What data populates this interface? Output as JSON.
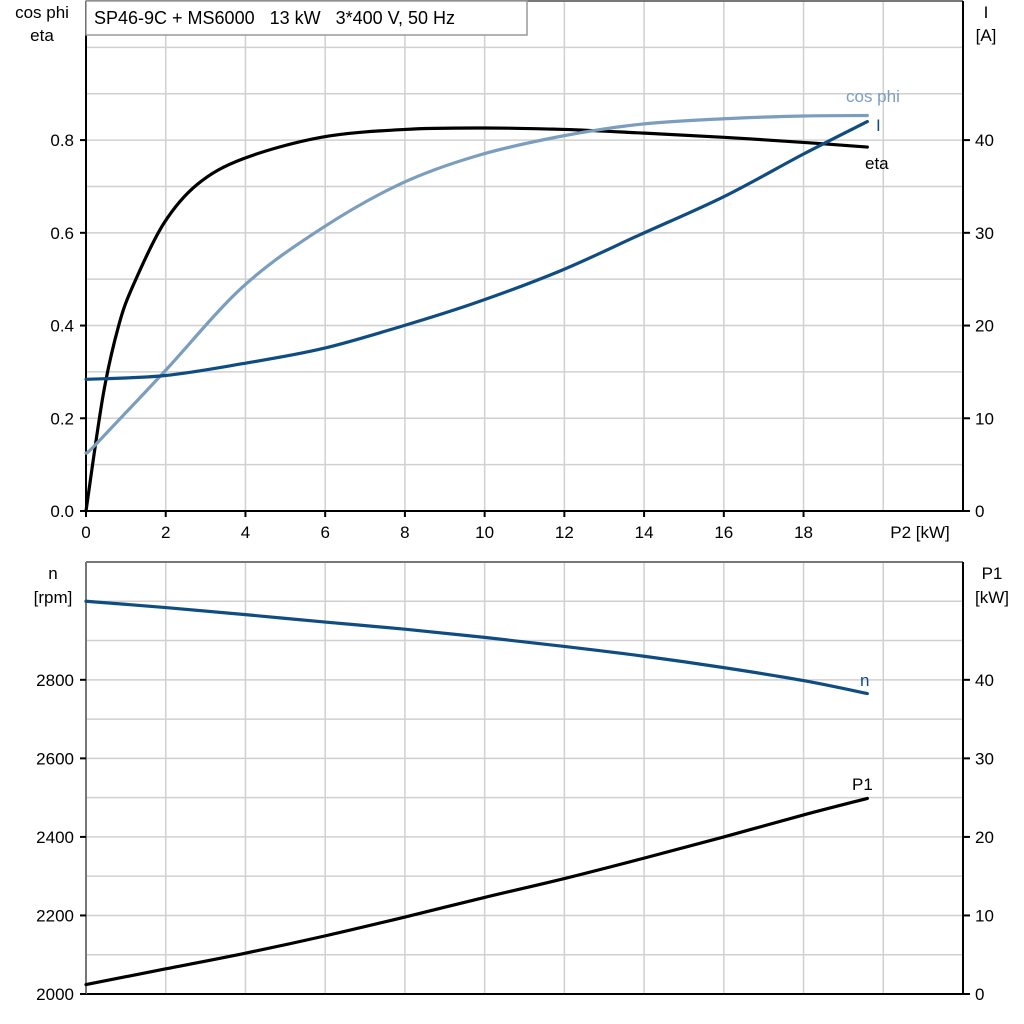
{
  "title": "SP46-9C + MS6000   13 kW   3*400 V, 50 Hz",
  "chart_data": [
    {
      "type": "line",
      "xlabel": "P2 [kW]",
      "ylabel_left": [
        "cos phi",
        "eta"
      ],
      "ylabel_right": [
        "I",
        "[A]"
      ],
      "xlim": [
        0,
        22
      ],
      "ylim_left": [
        0,
        1.1
      ],
      "ylim_right": [
        0,
        55
      ],
      "x_ticks": [
        0,
        2,
        4,
        6,
        8,
        10,
        12,
        14,
        16,
        18
      ],
      "x_tick_labels": [
        "0",
        "2",
        "4",
        "6",
        "8",
        "10",
        "12",
        "14",
        "16",
        "18"
      ],
      "y_left_ticks": [
        "0.0",
        "0.2",
        "0.4",
        "0.6",
        "0.8"
      ],
      "y_right_ticks": [
        "0",
        "10",
        "20",
        "30",
        "40"
      ],
      "grid": true,
      "series": [
        {
          "name": "eta",
          "axis": "left",
          "color": "#000000",
          "x": [
            0,
            0.43,
            0.82,
            1.2,
            1.95,
            2.8,
            3.95,
            5.9,
            8,
            10,
            12,
            14,
            16,
            18,
            19.6
          ],
          "y": [
            0,
            0.25,
            0.4,
            0.49,
            0.62,
            0.705,
            0.76,
            0.806,
            0.823,
            0.826,
            0.823,
            0.815,
            0.806,
            0.795,
            0.785
          ]
        },
        {
          "name": "cos phi",
          "axis": "left",
          "color": "#7b9ebf",
          "x": [
            0,
            0.25,
            1.96,
            3.94,
            5.92,
            7.9,
            9.8,
            11.9,
            13.9,
            16,
            18,
            19.6
          ],
          "y": [
            0.125,
            0.144,
            0.3,
            0.484,
            0.61,
            0.706,
            0.766,
            0.808,
            0.834,
            0.846,
            0.852,
            0.853
          ]
        },
        {
          "name": "I",
          "axis": "right",
          "color": "#0f4c81",
          "x": [
            0,
            1.96,
            3.94,
            5.92,
            7.9,
            9.8,
            11.9,
            13.9,
            16,
            18,
            19.6
          ],
          "y": [
            14.2,
            14.6,
            15.9,
            17.5,
            19.9,
            22.5,
            25.9,
            29.8,
            33.9,
            38.5,
            42.0
          ]
        }
      ]
    },
    {
      "type": "line",
      "ylabel_left": [
        "n",
        "[rpm]"
      ],
      "ylabel_right": [
        "P1",
        "[kW]"
      ],
      "xlim": [
        0,
        22
      ],
      "ylim_left": [
        2000,
        3100
      ],
      "ylim_right": [
        0,
        55
      ],
      "y_left_ticks": [
        "2000",
        "2200",
        "2400",
        "2600",
        "2800"
      ],
      "y_right_ticks": [
        "0",
        "10",
        "20",
        "30",
        "40"
      ],
      "grid": true,
      "series": [
        {
          "name": "n",
          "axis": "left",
          "color": "#0f4c81",
          "x": [
            0,
            2,
            4,
            6,
            8,
            10,
            12,
            14,
            16,
            18,
            19.6
          ],
          "y": [
            3000,
            2984,
            2966,
            2947,
            2929,
            2908,
            2885,
            2860,
            2831,
            2798,
            2765
          ]
        },
        {
          "name": "P1",
          "axis": "right",
          "color": "#000000",
          "x": [
            0,
            2,
            4,
            6,
            8,
            10,
            12,
            14,
            16,
            18,
            19.6
          ],
          "y": [
            1.2,
            3.2,
            5.2,
            7.4,
            9.8,
            12.3,
            14.7,
            17.3,
            20.0,
            22.8,
            24.9
          ]
        }
      ]
    }
  ]
}
